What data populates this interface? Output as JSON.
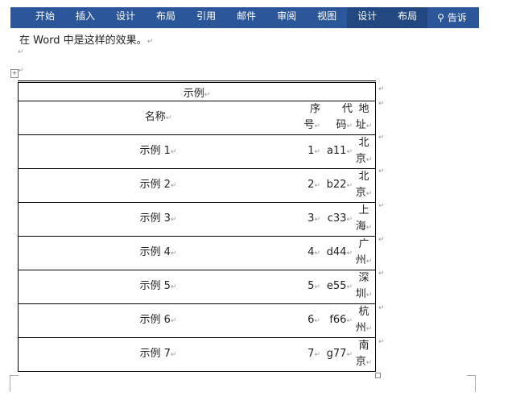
{
  "ribbon": {
    "tabs": [
      "开始",
      "插入",
      "设计",
      "布局",
      "引用",
      "邮件",
      "审阅",
      "视图"
    ],
    "context_tabs": [
      "设计",
      "布局"
    ],
    "search": "告诉"
  },
  "doc": {
    "intro": "在 Word 中是这样的效果。",
    "para_mark": "↵"
  },
  "table": {
    "title": "示例",
    "headers": {
      "name": "名称",
      "seq": [
        "序",
        "号"
      ],
      "code": [
        "代",
        "码"
      ],
      "addr": [
        "地",
        "址"
      ]
    },
    "rows": [
      {
        "name": "示例 1",
        "seq": "1",
        "code": "a11",
        "addr": [
          "北",
          "京"
        ]
      },
      {
        "name": "示例 2",
        "seq": "2",
        "code": "b22",
        "addr": [
          "北",
          "京"
        ]
      },
      {
        "name": "示例 3",
        "seq": "3",
        "code": "c33",
        "addr": [
          "上",
          "海"
        ]
      },
      {
        "name": "示例 4",
        "seq": "4",
        "code": "d44",
        "addr": [
          "广",
          "州"
        ]
      },
      {
        "name": "示例 5",
        "seq": "5",
        "code": "e55",
        "addr": [
          "深",
          "圳"
        ]
      },
      {
        "name": "示例 6",
        "seq": "6",
        "code": "f66",
        "addr": [
          "杭",
          "州"
        ]
      },
      {
        "name": "示例 7",
        "seq": "7",
        "code": "g77",
        "addr": [
          "南",
          "京"
        ]
      }
    ]
  }
}
